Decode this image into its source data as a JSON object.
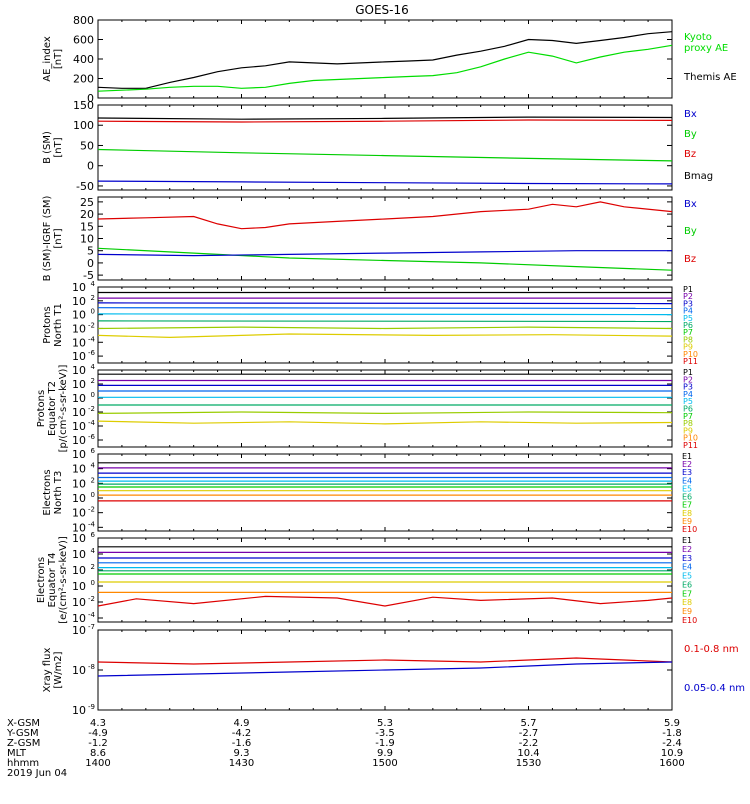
{
  "title": "GOES-16",
  "chart_data": [
    {
      "type": "line",
      "ylabel": [
        "AE_index",
        "[nT]"
      ],
      "yticks": [
        "800",
        "600",
        "400",
        "200",
        "0"
      ],
      "ylim": [
        0,
        800
      ],
      "legend": [
        "Kyoto",
        "proxy AE",
        "Themis AE"
      ],
      "legend_colors": [
        "#00dd00",
        "#00dd00",
        "#000000"
      ],
      "series": [
        {
          "name": "Themis AE",
          "color": "#000000",
          "x": [
            0,
            5,
            10,
            15,
            20,
            25,
            30,
            35,
            40,
            45,
            50,
            55,
            60,
            65,
            70,
            75,
            80,
            85,
            90,
            95,
            100,
            105,
            110,
            115,
            120
          ],
          "y": [
            110,
            100,
            100,
            160,
            210,
            270,
            310,
            330,
            370,
            360,
            350,
            360,
            370,
            380,
            390,
            440,
            480,
            530,
            600,
            590,
            560,
            590,
            620,
            660,
            680
          ]
        },
        {
          "name": "proxy AE",
          "color": "#00dd00",
          "x": [
            0,
            5,
            10,
            15,
            20,
            25,
            30,
            35,
            40,
            45,
            50,
            55,
            60,
            65,
            70,
            75,
            80,
            85,
            90,
            95,
            100,
            105,
            110,
            115,
            120
          ],
          "y": [
            70,
            80,
            90,
            110,
            120,
            120,
            100,
            110,
            150,
            180,
            190,
            200,
            210,
            220,
            230,
            260,
            320,
            400,
            470,
            430,
            360,
            420,
            470,
            500,
            540
          ]
        }
      ]
    },
    {
      "type": "line",
      "ylabel": [
        "B (SM)",
        "[nT]"
      ],
      "yticks": [
        "150",
        "100",
        "50",
        "0",
        "-50"
      ],
      "ylim": [
        -60,
        150
      ],
      "legend": [
        "Bx",
        "By",
        "Bz",
        "Bmag"
      ],
      "legend_colors": [
        "#0000cc",
        "#00cc00",
        "#dd0000",
        "#000000"
      ],
      "series": [
        {
          "name": "Bmag",
          "color": "#000000",
          "x": [
            0,
            30,
            60,
            90,
            120
          ],
          "y": [
            118,
            115,
            117,
            120,
            119
          ]
        },
        {
          "name": "Bz",
          "color": "#dd0000",
          "x": [
            0,
            30,
            60,
            90,
            120
          ],
          "y": [
            110,
            108,
            110,
            113,
            112
          ]
        },
        {
          "name": "By",
          "color": "#00cc00",
          "x": [
            0,
            30,
            60,
            90,
            120
          ],
          "y": [
            40,
            32,
            25,
            18,
            12
          ]
        },
        {
          "name": "Bx",
          "color": "#0000cc",
          "x": [
            0,
            30,
            60,
            90,
            120
          ],
          "y": [
            -38,
            -40,
            -42,
            -44,
            -45
          ]
        }
      ]
    },
    {
      "type": "line",
      "ylabel": [
        "B (SM)-IGRF (SM)",
        "[nT]"
      ],
      "yticks": [
        "25",
        "20",
        "15",
        "10",
        "5",
        "0",
        "-5"
      ],
      "ylim": [
        -7,
        27
      ],
      "legend": [
        "Bx",
        "By",
        "Bz"
      ],
      "legend_colors": [
        "#0000cc",
        "#00cc00",
        "#dd0000"
      ],
      "series": [
        {
          "name": "Bz",
          "color": "#dd0000",
          "x": [
            0,
            10,
            20,
            25,
            30,
            35,
            40,
            50,
            60,
            70,
            80,
            90,
            95,
            100,
            105,
            110,
            120
          ],
          "y": [
            18,
            18.5,
            19,
            16,
            14,
            14.5,
            16,
            17,
            18,
            19,
            21,
            22,
            24,
            23,
            25,
            23,
            21
          ]
        },
        {
          "name": "By",
          "color": "#00cc00",
          "x": [
            0,
            20,
            40,
            60,
            80,
            100,
            120
          ],
          "y": [
            6,
            4,
            2,
            1,
            0,
            -1.5,
            -3
          ]
        },
        {
          "name": "Bx",
          "color": "#0000cc",
          "x": [
            0,
            20,
            40,
            60,
            80,
            100,
            120
          ],
          "y": [
            3.5,
            3,
            3.5,
            4,
            4.5,
            5,
            5
          ]
        }
      ]
    },
    {
      "type": "line",
      "log": true,
      "ylabel": [
        "Protons",
        "North T1"
      ],
      "yticks_exp": [
        4,
        2,
        0,
        -2,
        -4,
        -6
      ],
      "ylim_exp": [
        -7,
        4
      ],
      "legend": [
        "P1",
        "P2",
        "P3",
        "P4",
        "P5",
        "P6",
        "P7",
        "P8",
        "P9",
        "P10",
        "P11"
      ],
      "legend_colors": [
        "#000000",
        "#7700aa",
        "#0000cc",
        "#0066ee",
        "#00bbee",
        "#00aa66",
        "#00cc00",
        "#99cc00",
        "#ddcc00",
        "#ff8800",
        "#dd0000"
      ],
      "series": [
        {
          "name": "P1",
          "color": "#000000",
          "x": [
            0,
            120
          ],
          "y_exp": [
            3.2,
            3.2
          ]
        },
        {
          "name": "P2",
          "color": "#7700aa",
          "x": [
            0,
            120
          ],
          "y_exp": [
            2.4,
            2.4
          ]
        },
        {
          "name": "P3",
          "color": "#0000cc",
          "x": [
            0,
            120
          ],
          "y_exp": [
            1.7,
            1.6
          ]
        },
        {
          "name": "P4",
          "color": "#0066ee",
          "x": [
            0,
            120
          ],
          "y_exp": [
            1.0,
            0.9
          ]
        },
        {
          "name": "P5",
          "color": "#00bbee",
          "x": [
            0,
            120
          ],
          "y_exp": [
            0.1,
            0.0
          ]
        },
        {
          "name": "P6",
          "color": "#00aa66",
          "x": [
            0,
            120
          ],
          "y_exp": [
            -0.9,
            -1.0
          ]
        },
        {
          "name": "P7",
          "color": "#99cc00",
          "x": [
            0,
            30,
            60,
            90,
            120
          ],
          "y_exp": [
            -2.0,
            -1.8,
            -2.0,
            -1.8,
            -2.0
          ]
        },
        {
          "name": "P8",
          "color": "#ddcc00",
          "x": [
            0,
            15,
            40,
            70,
            95,
            120
          ],
          "y_exp": [
            -3.0,
            -3.3,
            -2.8,
            -3.0,
            -2.9,
            -3.1
          ]
        }
      ]
    },
    {
      "type": "line",
      "log": true,
      "ylabel": [
        "Protons",
        "Equator T2",
        "[p/(cm²-s-sr-keV)]"
      ],
      "yticks_exp": [
        4,
        2,
        0,
        -2,
        -4,
        -6
      ],
      "ylim_exp": [
        -7,
        4
      ],
      "legend": [
        "P1",
        "P2",
        "P3",
        "P4",
        "P5",
        "P6",
        "P7",
        "P8",
        "P9",
        "P10",
        "P11"
      ],
      "legend_colors": [
        "#000000",
        "#7700aa",
        "#0000cc",
        "#0066ee",
        "#00bbee",
        "#00aa66",
        "#00cc00",
        "#99cc00",
        "#ddcc00",
        "#ff8800",
        "#dd0000"
      ],
      "series": [
        {
          "name": "P1",
          "color": "#000000",
          "x": [
            0,
            120
          ],
          "y_exp": [
            3.4,
            3.4
          ]
        },
        {
          "name": "P2",
          "color": "#7700aa",
          "x": [
            0,
            120
          ],
          "y_exp": [
            2.5,
            2.5
          ]
        },
        {
          "name": "P3",
          "color": "#0000cc",
          "x": [
            0,
            120
          ],
          "y_exp": [
            1.8,
            1.8
          ]
        },
        {
          "name": "P4",
          "color": "#0066ee",
          "x": [
            0,
            120
          ],
          "y_exp": [
            1.0,
            1.0
          ]
        },
        {
          "name": "P5",
          "color": "#00bbee",
          "x": [
            0,
            120
          ],
          "y_exp": [
            0.1,
            0.1
          ]
        },
        {
          "name": "P6",
          "color": "#00aa66",
          "x": [
            0,
            120
          ],
          "y_exp": [
            -1.0,
            -1.0
          ]
        },
        {
          "name": "P7",
          "color": "#99cc00",
          "x": [
            0,
            30,
            60,
            90,
            120
          ],
          "y_exp": [
            -2.2,
            -2.0,
            -2.2,
            -2.0,
            -2.1
          ]
        },
        {
          "name": "P8",
          "color": "#ddcc00",
          "x": [
            0,
            20,
            40,
            60,
            80,
            100,
            120
          ],
          "y_exp": [
            -3.3,
            -3.6,
            -3.4,
            -3.7,
            -3.4,
            -3.6,
            -3.5
          ]
        }
      ]
    },
    {
      "type": "line",
      "log": true,
      "ylabel": [
        "Electrons",
        "North T3"
      ],
      "yticks_exp": [
        6,
        4,
        2,
        0,
        -2,
        -4
      ],
      "ylim_exp": [
        -4.5,
        6
      ],
      "legend": [
        "E1",
        "E2",
        "E3",
        "E4",
        "E5",
        "E6",
        "E7",
        "E8",
        "E9",
        "E10"
      ],
      "legend_colors": [
        "#000000",
        "#7700aa",
        "#0000cc",
        "#0066ee",
        "#00bbee",
        "#00aa66",
        "#00cc00",
        "#ddcc00",
        "#ff8800",
        "#dd0000"
      ],
      "series": [
        {
          "name": "E1",
          "color": "#000000",
          "x": [
            0,
            120
          ],
          "y_exp": [
            4.8,
            4.8
          ]
        },
        {
          "name": "E2",
          "color": "#7700aa",
          "x": [
            0,
            120
          ],
          "y_exp": [
            4.1,
            4.1
          ]
        },
        {
          "name": "E3",
          "color": "#0000cc",
          "x": [
            0,
            120
          ],
          "y_exp": [
            3.4,
            3.4
          ]
        },
        {
          "name": "E4",
          "color": "#0066ee",
          "x": [
            0,
            120
          ],
          "y_exp": [
            2.8,
            2.8
          ]
        },
        {
          "name": "E5",
          "color": "#00bbee",
          "x": [
            0,
            120
          ],
          "y_exp": [
            2.3,
            2.3
          ]
        },
        {
          "name": "E6",
          "color": "#00aa66",
          "x": [
            0,
            120
          ],
          "y_exp": [
            1.9,
            1.9
          ]
        },
        {
          "name": "E7",
          "color": "#00cc00",
          "x": [
            0,
            120
          ],
          "y_exp": [
            1.5,
            1.5
          ]
        },
        {
          "name": "E8",
          "color": "#ddcc00",
          "x": [
            0,
            120
          ],
          "y_exp": [
            1.0,
            1.0
          ]
        },
        {
          "name": "E9",
          "color": "#ff8800",
          "x": [
            0,
            120
          ],
          "y_exp": [
            0.4,
            0.4
          ]
        },
        {
          "name": "E10",
          "color": "#dd0000",
          "x": [
            0,
            120
          ],
          "y_exp": [
            -0.4,
            -0.4
          ]
        }
      ]
    },
    {
      "type": "line",
      "log": true,
      "ylabel": [
        "Electrons",
        "Equator T4",
        "[e/(cm²-s-sr-keV)]"
      ],
      "yticks_exp": [
        6,
        4,
        2,
        0,
        -2,
        -4
      ],
      "ylim_exp": [
        -4.5,
        6
      ],
      "legend": [
        "E1",
        "E2",
        "E3",
        "E4",
        "E5",
        "E6",
        "E7",
        "E8",
        "E9",
        "E10"
      ],
      "legend_colors": [
        "#000000",
        "#7700aa",
        "#0000cc",
        "#0066ee",
        "#00bbee",
        "#00aa66",
        "#00cc00",
        "#ddcc00",
        "#ff8800",
        "#dd0000"
      ],
      "series": [
        {
          "name": "E1",
          "color": "#000000",
          "x": [
            0,
            120
          ],
          "y_exp": [
            4.9,
            4.9
          ]
        },
        {
          "name": "E2",
          "color": "#7700aa",
          "x": [
            0,
            120
          ],
          "y_exp": [
            4.2,
            4.2
          ]
        },
        {
          "name": "E3",
          "color": "#0000cc",
          "x": [
            0,
            120
          ],
          "y_exp": [
            3.5,
            3.5
          ]
        },
        {
          "name": "E4",
          "color": "#0066ee",
          "x": [
            0,
            120
          ],
          "y_exp": [
            2.9,
            2.9
          ]
        },
        {
          "name": "E5",
          "color": "#00bbee",
          "x": [
            0,
            120
          ],
          "y_exp": [
            2.3,
            2.3
          ]
        },
        {
          "name": "E6",
          "color": "#00aa66",
          "x": [
            0,
            120
          ],
          "y_exp": [
            1.9,
            1.9
          ]
        },
        {
          "name": "E7",
          "color": "#00cc00",
          "x": [
            0,
            120
          ],
          "y_exp": [
            1.5,
            1.5
          ]
        },
        {
          "name": "E8",
          "color": "#ddcc00",
          "x": [
            0,
            120
          ],
          "y_exp": [
            0.5,
            0.5
          ]
        },
        {
          "name": "E9",
          "color": "#ff8800",
          "x": [
            0,
            120
          ],
          "y_exp": [
            -0.8,
            -0.8
          ]
        },
        {
          "name": "E10",
          "color": "#dd0000",
          "x": [
            0,
            8,
            20,
            35,
            50,
            60,
            70,
            80,
            95,
            105,
            115,
            120
          ],
          "y_exp": [
            -2.5,
            -1.6,
            -2.2,
            -1.3,
            -1.5,
            -2.5,
            -1.4,
            -1.8,
            -1.5,
            -2.2,
            -1.8,
            -1.5
          ]
        }
      ]
    },
    {
      "type": "line",
      "log": true,
      "ylabel": [
        "Xray flux",
        "[W/m2]"
      ],
      "yticks_exp": [
        -7,
        -8,
        -9
      ],
      "ylim_exp": [
        -9,
        -7
      ],
      "legend": [
        "0.1-0.8 nm",
        "0.05-0.4 nm"
      ],
      "legend_colors": [
        "#dd0000",
        "#0000cc"
      ],
      "series": [
        {
          "name": "0.1-0.8 nm",
          "color": "#dd0000",
          "x": [
            0,
            20,
            40,
            60,
            80,
            100,
            120
          ],
          "y_exp": [
            -7.8,
            -7.85,
            -7.8,
            -7.75,
            -7.8,
            -7.7,
            -7.8
          ]
        },
        {
          "name": "0.05-0.4 nm",
          "color": "#0000cc",
          "x": [
            0,
            20,
            40,
            60,
            80,
            100,
            120
          ],
          "y_exp": [
            -8.15,
            -8.1,
            -8.05,
            -8.0,
            -7.95,
            -7.85,
            -7.8
          ]
        }
      ]
    }
  ],
  "x_axis": {
    "row_labels": [
      "X-GSM",
      "Y-GSM",
      "Z-GSM",
      "MLT",
      "hhmm"
    ],
    "columns": [
      {
        "x": 0,
        "values": [
          "4.3",
          "-4.9",
          "-1.2",
          "8.6",
          "1400"
        ]
      },
      {
        "x": 30,
        "values": [
          "4.9",
          "-4.2",
          "-1.6",
          "9.3",
          "1430"
        ]
      },
      {
        "x": 60,
        "values": [
          "5.3",
          "-3.5",
          "-1.9",
          "9.9",
          "1500"
        ]
      },
      {
        "x": 90,
        "values": [
          "5.7",
          "-2.7",
          "-2.2",
          "10.4",
          "1530"
        ]
      },
      {
        "x": 120,
        "values": [
          "5.9",
          "-1.8",
          "-2.4",
          "10.9",
          "1600"
        ]
      }
    ],
    "date": "2019 Jun 04"
  }
}
